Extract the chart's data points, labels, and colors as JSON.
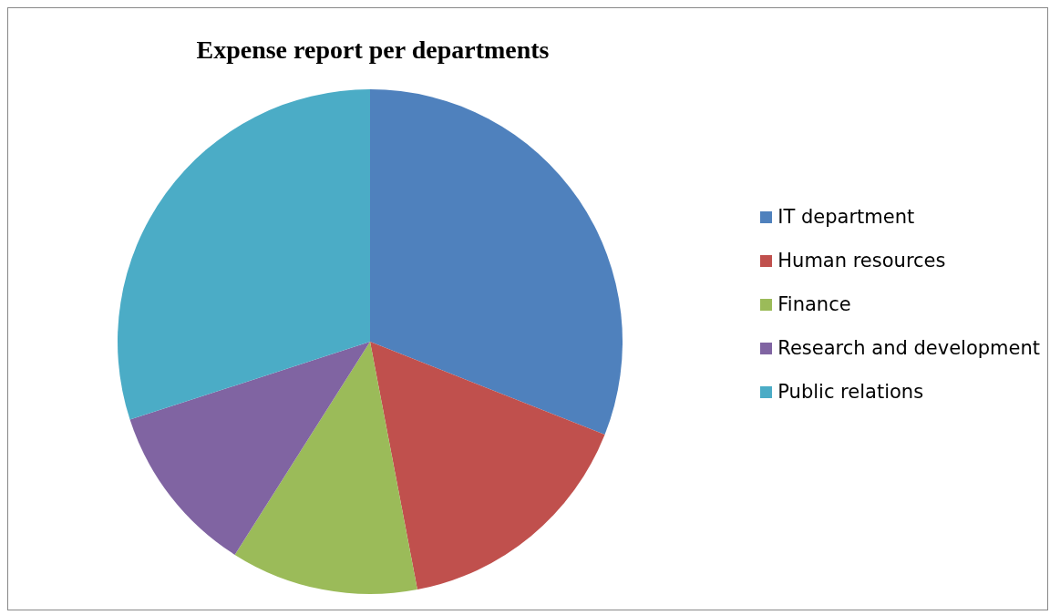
{
  "chart_data": {
    "type": "pie",
    "title": "Expense report per departments",
    "categories": [
      "IT department",
      "Human resources",
      "Finance",
      "Research and development",
      "Public relations"
    ],
    "values": [
      31,
      16,
      12,
      11,
      30
    ],
    "colors": [
      "#4f81bd",
      "#c0504d",
      "#9bbb59",
      "#8064a2",
      "#4bacc6"
    ],
    "legend": "right"
  }
}
